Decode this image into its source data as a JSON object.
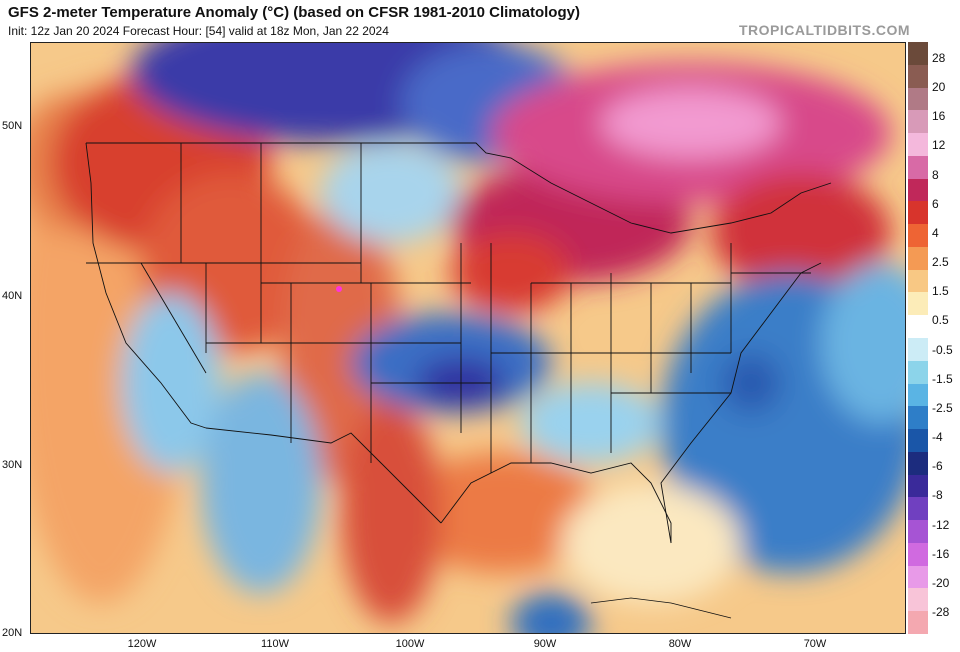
{
  "header": {
    "title": "GFS 2-meter Temperature Anomaly (°C) (based on CFSR 1981-2010 Climatology)",
    "subtitle": "Init: 12z Jan 20 2024   Forecast Hour: [54]   valid at 18z Mon, Jan 22 2024",
    "watermark": "TROPICALTIDBITS.COM"
  },
  "axes": {
    "lat_labels": [
      "50N",
      "40N",
      "30N",
      "20N"
    ],
    "lon_labels": [
      "120W",
      "110W",
      "100W",
      "90W",
      "80W",
      "70W"
    ]
  },
  "colorbar": {
    "labels": [
      "28",
      "20",
      "16",
      "12",
      "8",
      "6",
      "4",
      "2.5",
      "1.5",
      "0.5",
      "-0.5",
      "-1.5",
      "-2.5",
      "-4",
      "-6",
      "-8",
      "-12",
      "-16",
      "-20",
      "-28"
    ],
    "colors": [
      "#6b4a3a",
      "#8a5c52",
      "#b07a86",
      "#d89ab8",
      "#f4b8dc",
      "#d86aa6",
      "#c0285a",
      "#d8342c",
      "#ee6434",
      "#f49a54",
      "#f8c884",
      "#fcecb8",
      "#ffffff",
      "#ccecf6",
      "#8cd4ea",
      "#5ab4e4",
      "#2e7ec8",
      "#1a56a8",
      "#1c2c7e",
      "#3a2a9a",
      "#7040c0",
      "#a654d4",
      "#d06ae0",
      "#e89ae8",
      "#f8c4d8",
      "#f4a8b0"
    ]
  }
}
